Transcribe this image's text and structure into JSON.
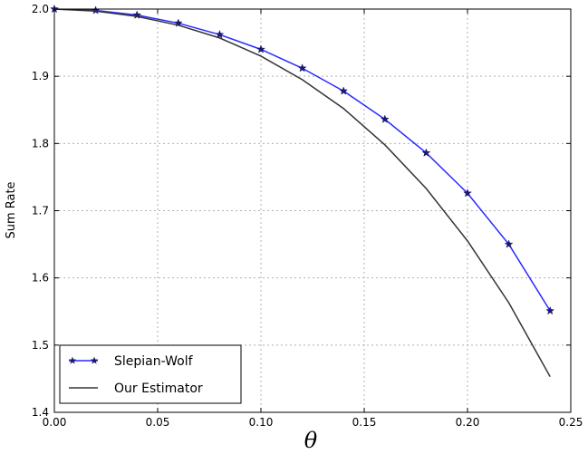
{
  "chart_data": {
    "type": "line",
    "title": "",
    "xlabel": "θ",
    "ylabel": "Sum Rate",
    "xlim": [
      0.0,
      0.25
    ],
    "ylim": [
      1.4,
      2.0
    ],
    "xticks": [
      "0.00",
      "0.05",
      "0.10",
      "0.15",
      "0.20",
      "0.25"
    ],
    "yticks": [
      "1.4",
      "1.5",
      "1.6",
      "1.7",
      "1.8",
      "1.9",
      "2.0"
    ],
    "grid": true,
    "legend_position": "lower-left",
    "series": [
      {
        "name": "Slepian-Wolf",
        "color": "#2a2aff",
        "marker": "star",
        "x": [
          0.0,
          0.02,
          0.04,
          0.06,
          0.08,
          0.1,
          0.12,
          0.14,
          0.16,
          0.18,
          0.2,
          0.22,
          0.24
        ],
        "y": [
          2.0,
          1.998,
          1.991,
          1.979,
          1.962,
          1.94,
          1.912,
          1.878,
          1.836,
          1.786,
          1.726,
          1.65,
          1.551
        ]
      },
      {
        "name": "Our Estimator",
        "color": "#333333",
        "marker": "none",
        "x": [
          0.0,
          0.02,
          0.04,
          0.06,
          0.08,
          0.1,
          0.12,
          0.14,
          0.16,
          0.18,
          0.2,
          0.22,
          0.24
        ],
        "y": [
          2.0,
          1.997,
          1.989,
          1.976,
          1.957,
          1.93,
          1.895,
          1.852,
          1.798,
          1.733,
          1.655,
          1.563,
          1.453
        ]
      }
    ]
  }
}
